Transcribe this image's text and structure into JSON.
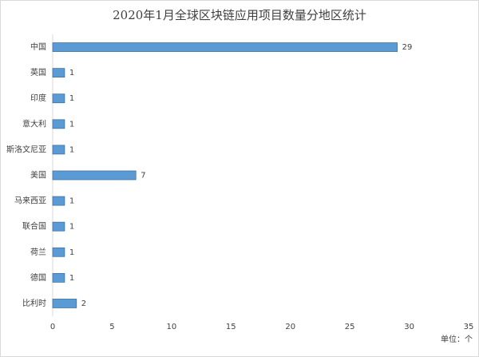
{
  "chart_data": {
    "type": "bar",
    "orientation": "horizontal",
    "title": "2020年1月全球区块链应用项目数量分地区统计",
    "categories": [
      "中国",
      "英国",
      "印度",
      "意大利",
      "斯洛文尼亚",
      "美国",
      "马来西亚",
      "联合国",
      "荷兰",
      "德国",
      "比利时"
    ],
    "values": [
      29,
      1,
      1,
      1,
      1,
      7,
      1,
      1,
      1,
      1,
      2
    ],
    "color": "#5b9bd5",
    "xlim": [
      0,
      35
    ],
    "xticks": [
      0,
      5,
      10,
      15,
      20,
      25,
      30,
      35
    ],
    "unit": "单位：个",
    "show_values": true
  }
}
